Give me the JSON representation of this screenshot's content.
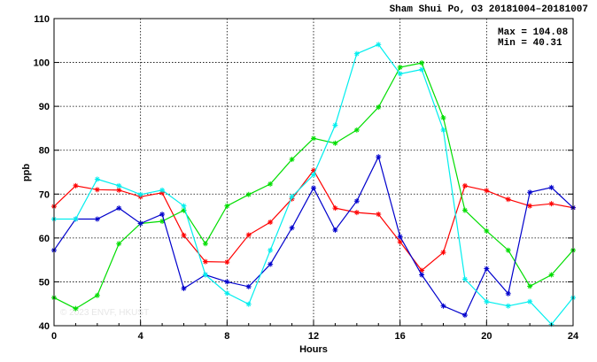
{
  "chart_data": {
    "type": "line",
    "title": "Sham Shui Po, O3 20181004–20181007",
    "xlabel": "Hours",
    "ylabel": "ppb",
    "xlim": [
      0,
      24
    ],
    "ylim": [
      40,
      110
    ],
    "xticks": [
      0,
      4,
      8,
      12,
      16,
      20,
      24
    ],
    "yticks": [
      40,
      50,
      60,
      70,
      80,
      90,
      100,
      110
    ],
    "grid": true,
    "legend": "none",
    "max_label": "Max = 104.08",
    "min_label": "Min =  40.31",
    "watermark": "© 2023  ENVF, HKUST",
    "series": [
      {
        "color": "#ff0000",
        "x": [
          0,
          1,
          2,
          3,
          4,
          5,
          6,
          7,
          8,
          9,
          10,
          11,
          12,
          13,
          14,
          15,
          16,
          17,
          18,
          19,
          20,
          21,
          22,
          23,
          24
        ],
        "y": [
          67.2,
          71.9,
          71.0,
          70.9,
          69.4,
          70.3,
          60.6,
          54.6,
          54.5,
          60.7,
          63.6,
          68.9,
          75.4,
          66.8,
          65.8,
          65.4,
          59.1,
          52.6,
          56.7,
          71.9,
          70.8,
          68.8,
          67.3,
          67.8,
          66.9
        ]
      },
      {
        "color": "#00dd00",
        "x": [
          0,
          1,
          2,
          3,
          4,
          5,
          6,
          7,
          8,
          9,
          10,
          11,
          12,
          13,
          14,
          15,
          16,
          17,
          18,
          19,
          20,
          21,
          22,
          23,
          24
        ],
        "y": [
          46.4,
          43.9,
          46.9,
          58.7,
          63.3,
          63.8,
          66.3,
          58.7,
          67.3,
          69.9,
          72.3,
          77.9,
          82.7,
          81.6,
          84.6,
          89.8,
          98.9,
          99.9,
          87.4,
          66.3,
          61.6,
          57.2,
          49.0,
          51.6,
          57.2
        ]
      },
      {
        "color": "#0000cc",
        "x": [
          0,
          1,
          2,
          3,
          4,
          5,
          6,
          7,
          8,
          9,
          10,
          11,
          12,
          13,
          14,
          15,
          16,
          17,
          18,
          19,
          20,
          21,
          22,
          23,
          24
        ],
        "y": [
          57.2,
          64.3,
          64.3,
          66.8,
          63.3,
          65.4,
          48.5,
          51.6,
          50.0,
          48.9,
          54.0,
          62.3,
          71.4,
          61.8,
          68.4,
          78.5,
          60.3,
          51.6,
          44.5,
          42.4,
          53.0,
          47.3,
          70.4,
          71.5,
          66.9
        ]
      },
      {
        "color": "#00eeee",
        "x": [
          0,
          1,
          2,
          3,
          4,
          5,
          6,
          7,
          8,
          9,
          10,
          11,
          12,
          13,
          14,
          15,
          16,
          17,
          18,
          19,
          20,
          21,
          22,
          23,
          24
        ],
        "y": [
          64.3,
          64.3,
          73.4,
          71.9,
          69.9,
          70.9,
          67.3,
          51.6,
          47.4,
          44.9,
          57.2,
          69.4,
          74.4,
          85.7,
          102.0,
          104.08,
          97.4,
          98.4,
          84.6,
          50.6,
          45.5,
          44.5,
          45.5,
          40.31,
          46.4
        ]
      }
    ]
  }
}
